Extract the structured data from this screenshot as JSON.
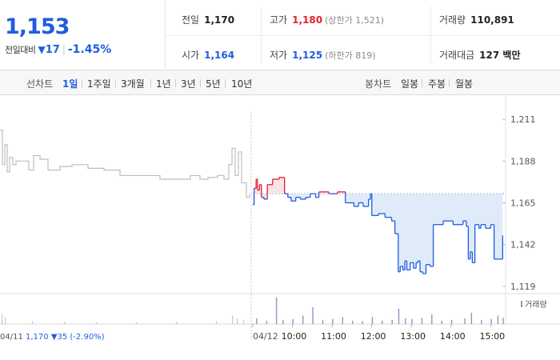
{
  "quote": {
    "price": "1,153",
    "change_label": "전일대비",
    "change_arrow": "▼",
    "change_amount": "17",
    "change_percent": "-1.45%",
    "prev_close": {
      "label": "전일",
      "value": "1,170"
    },
    "high": {
      "label": "고가",
      "value": "1,180",
      "sub": "(상한가 1,521)"
    },
    "volume": {
      "label": "거래량",
      "value": "110,891"
    },
    "open": {
      "label": "시가",
      "value": "1,164"
    },
    "low": {
      "label": "저가",
      "value": "1,125",
      "sub": "(하한가 819)"
    },
    "amount": {
      "label": "거래대금",
      "value": "127 백만"
    }
  },
  "tabs": {
    "line_label": "선차트",
    "periods": [
      "1일",
      "1주일",
      "3개월",
      "1년",
      "3년",
      "5년",
      "10년"
    ],
    "active_period": "1일",
    "candle_label": "봉차트",
    "candles": [
      "일봉",
      "주봉",
      "월봉"
    ]
  },
  "colors": {
    "up": "#e3202e",
    "down": "#1f5ddf",
    "prev_day_line": "#bdbdbd",
    "volume": "#9c8fc4"
  },
  "chart_data": {
    "type": "line",
    "y_ticks": [
      "1,211",
      "1,188",
      "1,165",
      "1,142",
      "1,119"
    ],
    "ylim": [
      1115,
      1215
    ],
    "reference_price": 1170,
    "volume_legend": "거래량",
    "prev_day_info": {
      "date": "04/11",
      "close": "1,170",
      "change": "▼35",
      "percent": "(-2.90%)"
    },
    "x_ticks": [
      "04/12",
      "10:00",
      "11:00",
      "12:00",
      "13:00",
      "14:00",
      "15:00"
    ],
    "prev_day_series": [
      {
        "t": 0,
        "v": 1205
      },
      {
        "t": 3,
        "v": 1186
      },
      {
        "t": 6,
        "v": 1197
      },
      {
        "t": 9,
        "v": 1182
      },
      {
        "t": 12,
        "v": 1190
      },
      {
        "t": 16,
        "v": 1186
      },
      {
        "t": 20,
        "v": 1188
      },
      {
        "t": 30,
        "v": 1188
      },
      {
        "t": 36,
        "v": 1183
      },
      {
        "t": 42,
        "v": 1191
      },
      {
        "t": 50,
        "v": 1189
      },
      {
        "t": 60,
        "v": 1183
      },
      {
        "t": 75,
        "v": 1185
      },
      {
        "t": 90,
        "v": 1186
      },
      {
        "t": 110,
        "v": 1184
      },
      {
        "t": 130,
        "v": 1183
      },
      {
        "t": 150,
        "v": 1180
      },
      {
        "t": 170,
        "v": 1180
      },
      {
        "t": 185,
        "v": 1180
      },
      {
        "t": 200,
        "v": 1178
      },
      {
        "t": 220,
        "v": 1178
      },
      {
        "t": 238,
        "v": 1180
      },
      {
        "t": 250,
        "v": 1178
      },
      {
        "t": 260,
        "v": 1179
      },
      {
        "t": 272,
        "v": 1180
      },
      {
        "t": 280,
        "v": 1178
      },
      {
        "t": 286,
        "v": 1186
      },
      {
        "t": 290,
        "v": 1195
      },
      {
        "t": 294,
        "v": 1180
      },
      {
        "t": 298,
        "v": 1193
      },
      {
        "t": 302,
        "v": 1176
      },
      {
        "t": 308,
        "v": 1168
      },
      {
        "t": 312,
        "v": 1170
      }
    ],
    "today_series": [
      {
        "t": "09:00",
        "v": 1164
      },
      {
        "t": "09:02",
        "v": 1173
      },
      {
        "t": "09:05",
        "v": 1178
      },
      {
        "t": "09:07",
        "v": 1172
      },
      {
        "t": "09:10",
        "v": 1175
      },
      {
        "t": "09:13",
        "v": 1168
      },
      {
        "t": "09:17",
        "v": 1167
      },
      {
        "t": "09:22",
        "v": 1175
      },
      {
        "t": "09:30",
        "v": 1178
      },
      {
        "t": "09:40",
        "v": 1179
      },
      {
        "t": "09:48",
        "v": 1170
      },
      {
        "t": "09:53",
        "v": 1168
      },
      {
        "t": "09:58",
        "v": 1166
      },
      {
        "t": "10:05",
        "v": 1168
      },
      {
        "t": "10:12",
        "v": 1167
      },
      {
        "t": "10:20",
        "v": 1168
      },
      {
        "t": "10:27",
        "v": 1170
      },
      {
        "t": "10:35",
        "v": 1168
      },
      {
        "t": "10:40",
        "v": 1171
      },
      {
        "t": "10:55",
        "v": 1170
      },
      {
        "t": "11:05",
        "v": 1170
      },
      {
        "t": "11:08",
        "v": 1171
      },
      {
        "t": "11:15",
        "v": 1171
      },
      {
        "t": "11:20",
        "v": 1165
      },
      {
        "t": "11:33",
        "v": 1163
      },
      {
        "t": "11:40",
        "v": 1165
      },
      {
        "t": "11:47",
        "v": 1163
      },
      {
        "t": "11:55",
        "v": 1167
      },
      {
        "t": "11:58",
        "v": 1170
      },
      {
        "t": "12:00",
        "v": 1158
      },
      {
        "t": "12:10",
        "v": 1159
      },
      {
        "t": "12:20",
        "v": 1157
      },
      {
        "t": "12:30",
        "v": 1155
      },
      {
        "t": "12:35",
        "v": 1148
      },
      {
        "t": "12:40",
        "v": 1127
      },
      {
        "t": "12:43",
        "v": 1130
      },
      {
        "t": "12:47",
        "v": 1128
      },
      {
        "t": "12:50",
        "v": 1133
      },
      {
        "t": "12:53",
        "v": 1128
      },
      {
        "t": "12:58",
        "v": 1132
      },
      {
        "t": "13:03",
        "v": 1129
      },
      {
        "t": "13:07",
        "v": 1132
      },
      {
        "t": "13:10",
        "v": 1133
      },
      {
        "t": "13:13",
        "v": 1127
      },
      {
        "t": "13:17",
        "v": 1126
      },
      {
        "t": "13:22",
        "v": 1131
      },
      {
        "t": "13:28",
        "v": 1130
      },
      {
        "t": "13:33",
        "v": 1153
      },
      {
        "t": "13:48",
        "v": 1155
      },
      {
        "t": "14:03",
        "v": 1153
      },
      {
        "t": "14:18",
        "v": 1155
      },
      {
        "t": "14:23",
        "v": 1152
      },
      {
        "t": "14:26",
        "v": 1134
      },
      {
        "t": "14:29",
        "v": 1138
      },
      {
        "t": "14:32",
        "v": 1132
      },
      {
        "t": "14:36",
        "v": 1153
      },
      {
        "t": "14:42",
        "v": 1151
      },
      {
        "t": "14:45",
        "v": 1153
      },
      {
        "t": "14:52",
        "v": 1151
      },
      {
        "t": "15:00",
        "v": 1153
      },
      {
        "t": "15:05",
        "v": 1134
      },
      {
        "t": "15:12",
        "v": 1134
      },
      {
        "t": "15:18",
        "v": 1147
      }
    ],
    "prev_day_volume": [
      {
        "t": 2,
        "v": 0.35
      },
      {
        "t": 6,
        "v": 0.25
      },
      {
        "t": 40,
        "v": 0.1
      },
      {
        "t": 80,
        "v": 0.08
      },
      {
        "t": 120,
        "v": 0.06
      },
      {
        "t": 170,
        "v": 0.06
      },
      {
        "t": 220,
        "v": 0.08
      },
      {
        "t": 270,
        "v": 0.1
      },
      {
        "t": 290,
        "v": 0.3
      },
      {
        "t": 296,
        "v": 0.2
      },
      {
        "t": 304,
        "v": 0.15
      }
    ],
    "today_volume": [
      {
        "t": "09:05",
        "v": 0.2
      },
      {
        "t": "09:20",
        "v": 0.12
      },
      {
        "t": "09:35",
        "v": 0.95
      },
      {
        "t": "09:45",
        "v": 0.15
      },
      {
        "t": "10:00",
        "v": 0.18
      },
      {
        "t": "10:15",
        "v": 0.3
      },
      {
        "t": "10:30",
        "v": 0.6
      },
      {
        "t": "10:45",
        "v": 0.15
      },
      {
        "t": "11:00",
        "v": 0.18
      },
      {
        "t": "11:15",
        "v": 0.25
      },
      {
        "t": "11:30",
        "v": 0.12
      },
      {
        "t": "11:45",
        "v": 0.1
      },
      {
        "t": "12:00",
        "v": 0.25
      },
      {
        "t": "12:15",
        "v": 0.12
      },
      {
        "t": "12:30",
        "v": 0.15
      },
      {
        "t": "12:40",
        "v": 0.55
      },
      {
        "t": "12:50",
        "v": 0.2
      },
      {
        "t": "13:00",
        "v": 0.18
      },
      {
        "t": "13:15",
        "v": 0.22
      },
      {
        "t": "13:30",
        "v": 0.35
      },
      {
        "t": "13:45",
        "v": 0.12
      },
      {
        "t": "14:00",
        "v": 0.15
      },
      {
        "t": "14:20",
        "v": 0.2
      },
      {
        "t": "14:30",
        "v": 0.4
      },
      {
        "t": "14:45",
        "v": 0.15
      },
      {
        "t": "15:00",
        "v": 0.18
      },
      {
        "t": "15:10",
        "v": 0.3
      },
      {
        "t": "15:18",
        "v": 0.22
      }
    ]
  }
}
